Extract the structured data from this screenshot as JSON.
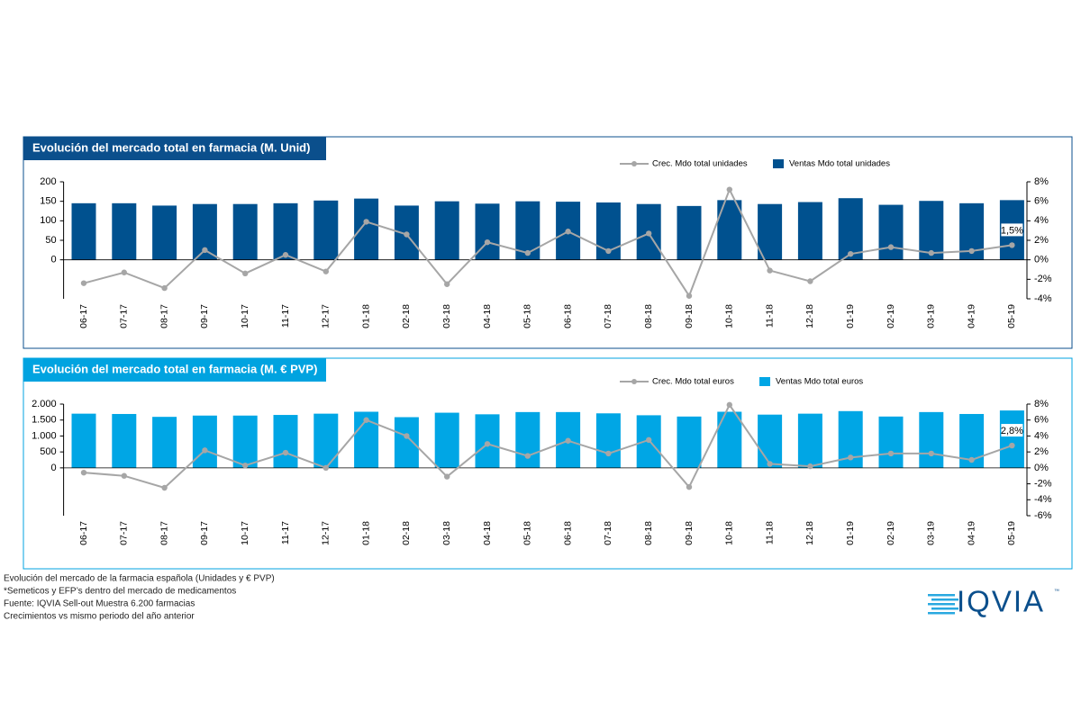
{
  "chart_data": [
    {
      "type": "bar",
      "title": "Evolución del mercado total en farmacia (M. Unid)",
      "title_color": "#0b4f8c",
      "categories": [
        "06-17",
        "07-17",
        "08-17",
        "09-17",
        "10-17",
        "11-17",
        "12-17",
        "01-18",
        "02-18",
        "03-18",
        "04-18",
        "05-18",
        "06-18",
        "07-18",
        "08-18",
        "09-18",
        "10-18",
        "11-18",
        "12-18",
        "01-19",
        "02-19",
        "03-19",
        "04-19",
        "05-19"
      ],
      "series": [
        {
          "name": "Ventas Mdo total unidades",
          "type": "bar",
          "color": "#00518f",
          "values": [
            145,
            145,
            139,
            143,
            143,
            145,
            152,
            157,
            139,
            150,
            144,
            150,
            149,
            147,
            143,
            138,
            153,
            143,
            148,
            158,
            141,
            151,
            145,
            153
          ]
        },
        {
          "name": "Crec. Mdo total unidades",
          "type": "line",
          "axis": "y2",
          "color": "#a6a6a6",
          "values": [
            -2.4,
            -1.3,
            -2.9,
            1.0,
            -1.4,
            0.5,
            -1.2,
            3.9,
            2.6,
            -2.5,
            1.8,
            0.7,
            2.9,
            0.9,
            2.7,
            -3.7,
            7.2,
            -1.1,
            -2.2,
            0.6,
            1.3,
            0.7,
            0.9,
            1.5
          ],
          "value_labels": [
            null,
            null,
            null,
            null,
            null,
            null,
            null,
            null,
            null,
            null,
            null,
            null,
            null,
            null,
            null,
            null,
            null,
            null,
            null,
            null,
            null,
            null,
            null,
            "1,5%"
          ]
        }
      ],
      "ylim": [
        -100,
        200
      ],
      "yticks": [
        0,
        50,
        100,
        150,
        200
      ],
      "y2lim": [
        -4,
        8
      ],
      "y2ticks": [
        {
          "value": -4,
          "label": "-4%"
        },
        {
          "value": -2,
          "label": "-2%"
        },
        {
          "value": 0,
          "label": "0%"
        },
        {
          "value": 2,
          "label": "2%"
        },
        {
          "value": 4,
          "label": "4%"
        },
        {
          "value": 6,
          "label": "6%"
        },
        {
          "value": 8,
          "label": "8%"
        }
      ]
    },
    {
      "type": "bar",
      "title": "Evolución del mercado total en farmacia (M. € PVP)",
      "title_color": "#00a3e0",
      "categories": [
        "06-17",
        "07-17",
        "08-17",
        "09-17",
        "10-17",
        "11-17",
        "12-17",
        "01-18",
        "02-18",
        "03-18",
        "04-18",
        "05-18",
        "06-18",
        "07-18",
        "08-18",
        "09-18",
        "10-18",
        "11-18",
        "12-18",
        "01-19",
        "02-19",
        "03-19",
        "04-19",
        "05-19"
      ],
      "series": [
        {
          "name": "Ventas Mdo total euros",
          "type": "bar",
          "color": "#00a6e5",
          "values": [
            1700,
            1690,
            1600,
            1640,
            1640,
            1660,
            1700,
            1760,
            1590,
            1730,
            1680,
            1750,
            1750,
            1710,
            1650,
            1610,
            1760,
            1670,
            1700,
            1780,
            1610,
            1750,
            1690,
            1800
          ]
        },
        {
          "name": "Crec. Mdo total euros",
          "type": "line",
          "axis": "y2",
          "color": "#a6a6a6",
          "values": [
            -0.6,
            -1.0,
            -2.5,
            2.2,
            0.3,
            1.9,
            0.0,
            6.0,
            4.0,
            -1.1,
            3.0,
            1.5,
            3.4,
            1.8,
            3.5,
            -2.4,
            7.9,
            0.5,
            0.2,
            1.3,
            1.8,
            1.8,
            1.0,
            2.8
          ],
          "value_labels": [
            null,
            null,
            null,
            null,
            null,
            null,
            null,
            null,
            null,
            null,
            null,
            null,
            null,
            null,
            null,
            null,
            null,
            null,
            null,
            null,
            null,
            null,
            null,
            "2,8%"
          ]
        }
      ],
      "ylim": [
        -1500,
        2000
      ],
      "yticks": [
        0,
        500,
        {
          "value": 1000,
          "label": "1.000"
        },
        {
          "value": 1500,
          "label": "1.500"
        },
        {
          "value": 2000,
          "label": "2.000"
        }
      ],
      "y2lim": [
        -6,
        8
      ],
      "y2ticks": [
        {
          "value": -6,
          "label": "-6%"
        },
        {
          "value": -4,
          "label": "-4%"
        },
        {
          "value": -2,
          "label": "-2%"
        },
        {
          "value": 0,
          "label": "0%"
        },
        {
          "value": 2,
          "label": "2%"
        },
        {
          "value": 4,
          "label": "4%"
        },
        {
          "value": 6,
          "label": "6%"
        },
        {
          "value": 8,
          "label": "8%"
        }
      ]
    }
  ],
  "notes": [
    "Evolución del mercado de la farmacia española (Unidades y € PVP)",
    "*Semeticos y EFP’s dentro del mercado de medicamentos",
    "Fuente: IQVIA Sell-out Muestra 6.200 farmacias",
    "Crecimientos vs mismo periodo del año anterior"
  ],
  "logo": "IQVIA",
  "logo_mark": "™"
}
